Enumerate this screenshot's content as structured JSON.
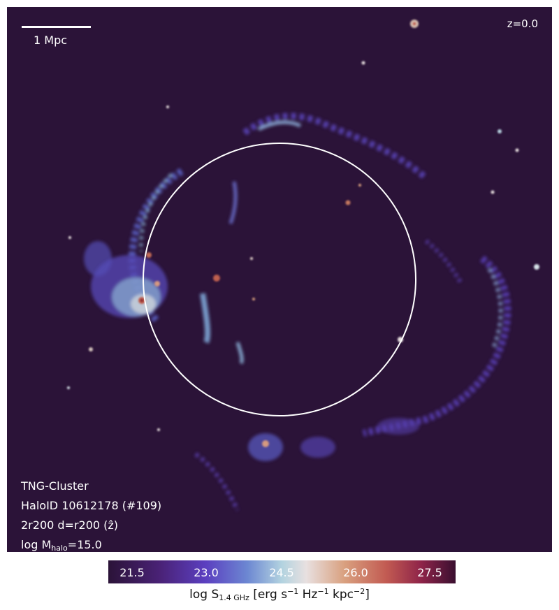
{
  "scale_bar": {
    "label": "1 Mpc"
  },
  "redshift": "z=0.0",
  "info": {
    "simulation": "TNG-Cluster",
    "halo": "HaloID 10612178 (#109)",
    "projection_prefix": "2r200 d=r200 (",
    "projection_axis": "ẑ",
    "projection_suffix": ")",
    "mass_prefix": "log M",
    "mass_sub": "halo",
    "mass_suffix": "=15.0"
  },
  "colorbar": {
    "ticks": [
      "21.5",
      "23.0",
      "24.5",
      "26.0",
      "27.5"
    ],
    "label_prefix": "log S",
    "label_sub": "1.4 GHz",
    "label_mid1": " [erg s",
    "label_sup1": "−1",
    "label_mid2": " Hz",
    "label_sup2": "−1",
    "label_mid3": " kpc",
    "label_sup3": "−2",
    "label_end": "]"
  },
  "colors": {
    "background": "#2b1338",
    "circle": "#ffffff"
  }
}
